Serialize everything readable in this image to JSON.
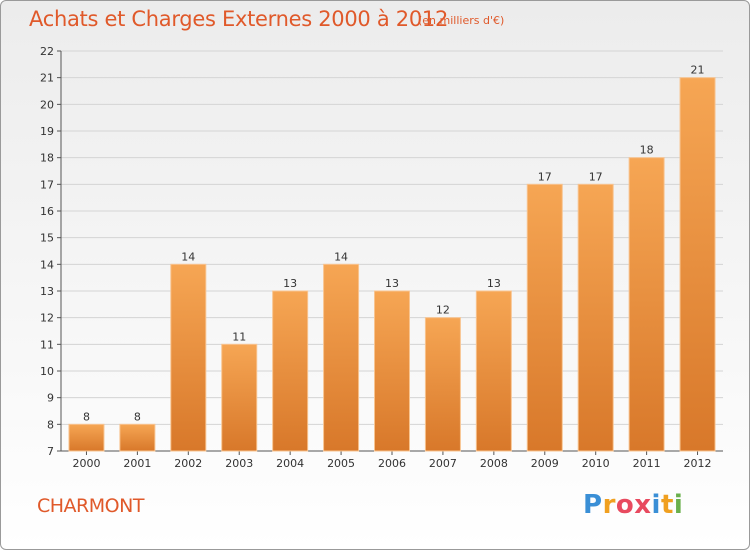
{
  "header": {
    "title": "Achats et Charges Externes 2000 à 2012",
    "subtitle": "(en milliers d'€)"
  },
  "footer": {
    "town": "CHARMONT",
    "logo_text": "Proxiti",
    "logo_letters": [
      "P",
      "r",
      "o",
      "x",
      "i",
      "t",
      "i"
    ],
    "logo_colors": [
      "#3a8fd6",
      "#f0a020",
      "#e84a5f",
      "#e84a5f",
      "#3a8fd6",
      "#f0a020",
      "#6ab04c"
    ]
  },
  "colors": {
    "bar_top": "#f6a654",
    "bar_bottom": "#d8782a",
    "grid": "#d4d4d4",
    "text_accent": "#e0592a"
  },
  "chart_data": {
    "type": "bar",
    "title": "Achats et Charges Externes 2000 à 2012",
    "subtitle": "(en milliers d'€)",
    "categories": [
      "2000",
      "2001",
      "2002",
      "2003",
      "2004",
      "2005",
      "2006",
      "2007",
      "2008",
      "2009",
      "2010",
      "2011",
      "2012"
    ],
    "values": [
      8,
      8,
      14,
      11,
      13,
      14,
      13,
      12,
      13,
      17,
      17,
      18,
      21
    ],
    "ylim": [
      7,
      22
    ],
    "yticks": [
      7,
      8,
      9,
      10,
      11,
      12,
      13,
      14,
      15,
      16,
      17,
      18,
      19,
      20,
      21,
      22
    ],
    "xlabel": "",
    "ylabel": "",
    "grid": true,
    "data_labels": true
  }
}
